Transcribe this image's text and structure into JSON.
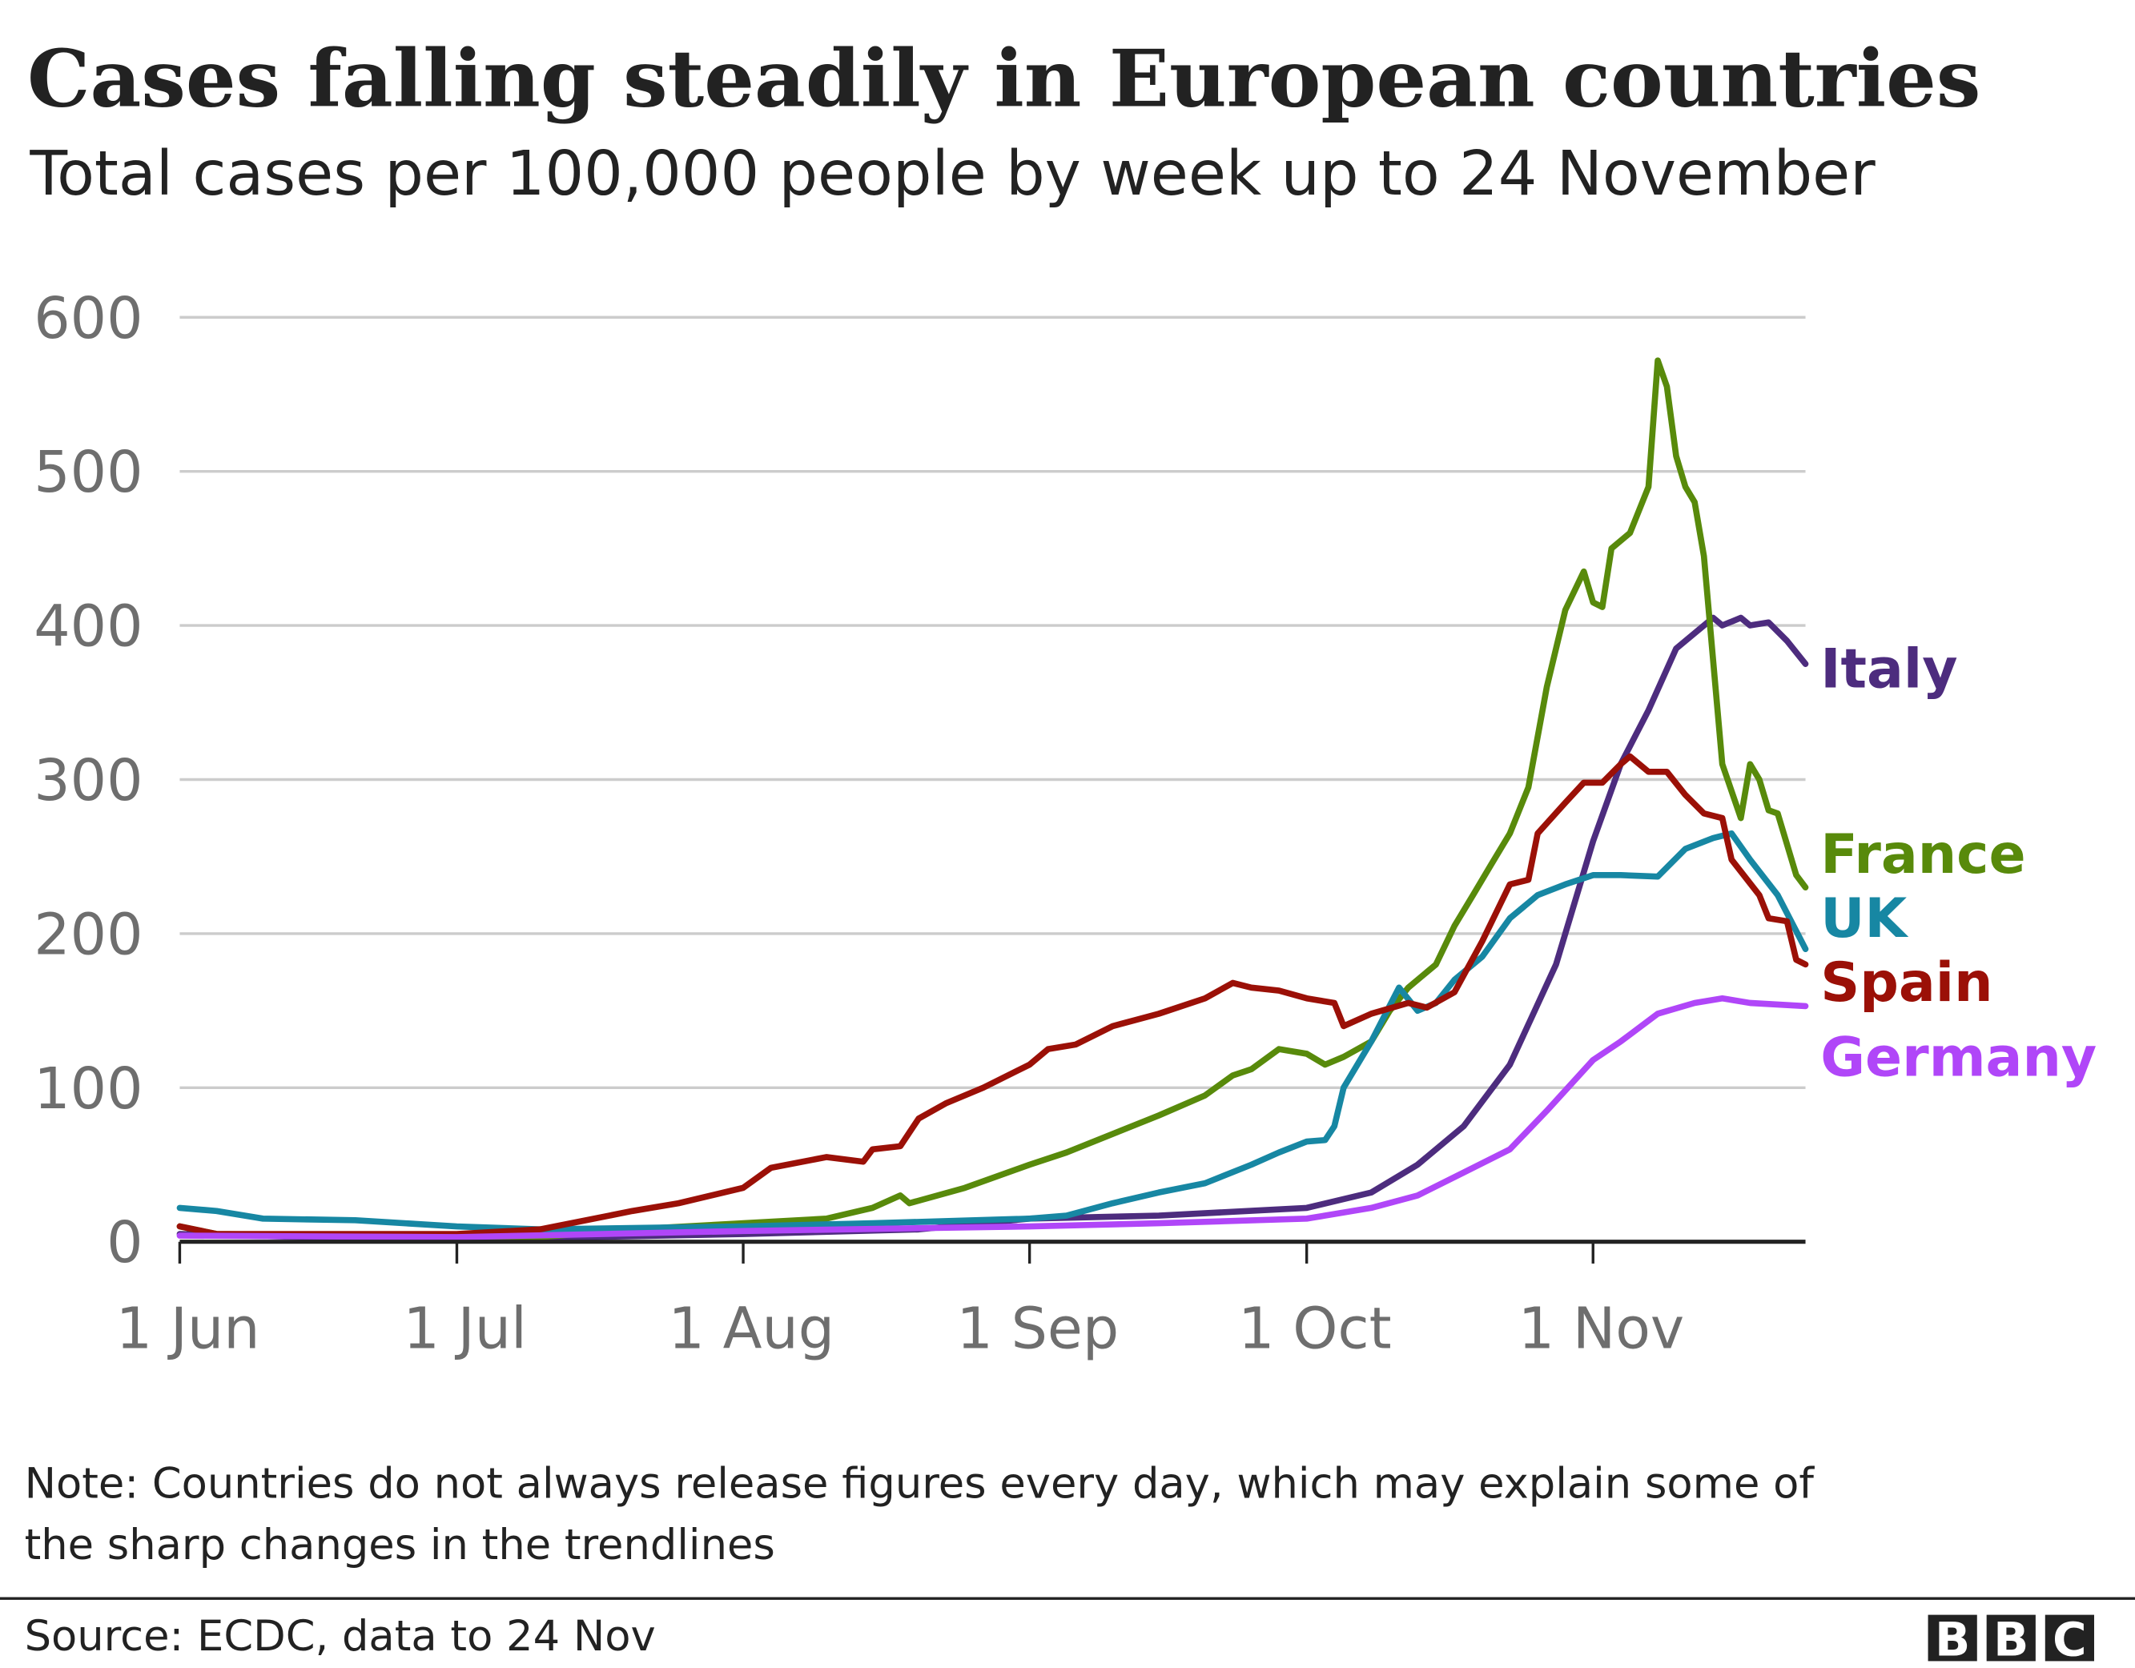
{
  "chart_data": {
    "type": "line",
    "title": "Cases falling steadily in European countries",
    "subtitle": "Total cases per 100,000 people by week up to 24 November",
    "xlabel": "",
    "ylabel": "",
    "x_range": [
      "2020-06-01",
      "2020-11-24"
    ],
    "ylim": [
      0,
      600
    ],
    "y_ticks": [
      "0",
      "100",
      "200",
      "300",
      "400",
      "500",
      "600"
    ],
    "x_ticks": [
      {
        "date": "2020-06-01",
        "label": "1 Jun"
      },
      {
        "date": "2020-07-01",
        "label": "1 Jul"
      },
      {
        "date": "2020-08-01",
        "label": "1 Aug"
      },
      {
        "date": "2020-09-01",
        "label": "1 Sep"
      },
      {
        "date": "2020-10-01",
        "label": "1 Oct"
      },
      {
        "date": "2020-11-01",
        "label": "1 Nov"
      }
    ],
    "grid": "horizontal",
    "legend": "direct labels at line ends (right)",
    "series": [
      {
        "name": "Italy",
        "color": "#4d2c7e",
        "points": [
          [
            "2020-06-01",
            5
          ],
          [
            "2020-06-15",
            3
          ],
          [
            "2020-07-15",
            3
          ],
          [
            "2020-08-01",
            5
          ],
          [
            "2020-08-20",
            8
          ],
          [
            "2020-09-01",
            15
          ],
          [
            "2020-09-15",
            17
          ],
          [
            "2020-10-01",
            22
          ],
          [
            "2020-10-08",
            32
          ],
          [
            "2020-10-13",
            50
          ],
          [
            "2020-10-18",
            75
          ],
          [
            "2020-10-23",
            115
          ],
          [
            "2020-10-28",
            180
          ],
          [
            "2020-11-01",
            260
          ],
          [
            "2020-11-04",
            310
          ],
          [
            "2020-11-07",
            345
          ],
          [
            "2020-11-10",
            385
          ],
          [
            "2020-11-12",
            395
          ],
          [
            "2020-11-14",
            405
          ],
          [
            "2020-11-15",
            400
          ],
          [
            "2020-11-17",
            405
          ],
          [
            "2020-11-18",
            400
          ],
          [
            "2020-11-20",
            402
          ],
          [
            "2020-11-22",
            390
          ],
          [
            "2020-11-24",
            375
          ]
        ]
      },
      {
        "name": "France",
        "color": "#588a0b",
        "points": [
          [
            "2020-06-01",
            10
          ],
          [
            "2020-06-05",
            5
          ],
          [
            "2020-07-10",
            3
          ],
          [
            "2020-07-20",
            8
          ],
          [
            "2020-08-01",
            12
          ],
          [
            "2020-08-10",
            15
          ],
          [
            "2020-08-15",
            22
          ],
          [
            "2020-08-18",
            30
          ],
          [
            "2020-08-19",
            25
          ],
          [
            "2020-08-25",
            35
          ],
          [
            "2020-09-01",
            50
          ],
          [
            "2020-09-05",
            58
          ],
          [
            "2020-09-10",
            70
          ],
          [
            "2020-09-15",
            82
          ],
          [
            "2020-09-20",
            95
          ],
          [
            "2020-09-23",
            108
          ],
          [
            "2020-09-25",
            112
          ],
          [
            "2020-09-28",
            125
          ],
          [
            "2020-10-01",
            122
          ],
          [
            "2020-10-03",
            115
          ],
          [
            "2020-10-05",
            120
          ],
          [
            "2020-10-08",
            130
          ],
          [
            "2020-10-10",
            150
          ],
          [
            "2020-10-12",
            165
          ],
          [
            "2020-10-15",
            180
          ],
          [
            "2020-10-17",
            205
          ],
          [
            "2020-10-19",
            225
          ],
          [
            "2020-10-21",
            245
          ],
          [
            "2020-10-23",
            265
          ],
          [
            "2020-10-25",
            295
          ],
          [
            "2020-10-27",
            360
          ],
          [
            "2020-10-29",
            410
          ],
          [
            "2020-10-31",
            435
          ],
          [
            "2020-11-01",
            415
          ],
          [
            "2020-11-02",
            412
          ],
          [
            "2020-11-03",
            450
          ],
          [
            "2020-11-05",
            460
          ],
          [
            "2020-11-07",
            490
          ],
          [
            "2020-11-08",
            572
          ],
          [
            "2020-11-09",
            555
          ],
          [
            "2020-11-10",
            510
          ],
          [
            "2020-11-11",
            490
          ],
          [
            "2020-11-12",
            480
          ],
          [
            "2020-11-13",
            445
          ],
          [
            "2020-11-15",
            310
          ],
          [
            "2020-11-17",
            275
          ],
          [
            "2020-11-18",
            310
          ],
          [
            "2020-11-19",
            300
          ],
          [
            "2020-11-20",
            280
          ],
          [
            "2020-11-21",
            278
          ],
          [
            "2020-11-23",
            238
          ],
          [
            "2020-11-24",
            230
          ]
        ]
      },
      {
        "name": "UK",
        "color": "#1787a3",
        "points": [
          [
            "2020-06-01",
            22
          ],
          [
            "2020-06-05",
            20
          ],
          [
            "2020-06-10",
            15
          ],
          [
            "2020-06-20",
            14
          ],
          [
            "2020-07-01",
            10
          ],
          [
            "2020-07-10",
            8
          ],
          [
            "2020-08-01",
            10
          ],
          [
            "2020-08-15",
            12
          ],
          [
            "2020-09-01",
            15
          ],
          [
            "2020-09-05",
            17
          ],
          [
            "2020-09-10",
            25
          ],
          [
            "2020-09-15",
            32
          ],
          [
            "2020-09-20",
            38
          ],
          [
            "2020-09-25",
            50
          ],
          [
            "2020-09-28",
            58
          ],
          [
            "2020-10-01",
            65
          ],
          [
            "2020-10-03",
            66
          ],
          [
            "2020-10-04",
            75
          ],
          [
            "2020-10-05",
            100
          ],
          [
            "2020-10-08",
            130
          ],
          [
            "2020-10-11",
            165
          ],
          [
            "2020-10-13",
            150
          ],
          [
            "2020-10-15",
            155
          ],
          [
            "2020-10-17",
            170
          ],
          [
            "2020-10-20",
            185
          ],
          [
            "2020-10-23",
            210
          ],
          [
            "2020-10-26",
            225
          ],
          [
            "2020-10-29",
            232
          ],
          [
            "2020-11-01",
            238
          ],
          [
            "2020-11-04",
            238
          ],
          [
            "2020-11-08",
            237
          ],
          [
            "2020-11-11",
            255
          ],
          [
            "2020-11-14",
            262
          ],
          [
            "2020-11-16",
            265
          ],
          [
            "2020-11-18",
            248
          ],
          [
            "2020-11-21",
            225
          ],
          [
            "2020-11-24",
            190
          ]
        ]
      },
      {
        "name": "Spain",
        "color": "#9b1007",
        "points": [
          [
            "2020-06-01",
            10
          ],
          [
            "2020-06-05",
            5
          ],
          [
            "2020-07-01",
            5
          ],
          [
            "2020-07-10",
            8
          ],
          [
            "2020-07-20",
            20
          ],
          [
            "2020-07-25",
            25
          ],
          [
            "2020-08-01",
            35
          ],
          [
            "2020-08-04",
            48
          ],
          [
            "2020-08-10",
            55
          ],
          [
            "2020-08-14",
            52
          ],
          [
            "2020-08-15",
            60
          ],
          [
            "2020-08-18",
            62
          ],
          [
            "2020-08-20",
            80
          ],
          [
            "2020-08-23",
            90
          ],
          [
            "2020-08-27",
            100
          ],
          [
            "2020-09-01",
            115
          ],
          [
            "2020-09-03",
            125
          ],
          [
            "2020-09-06",
            128
          ],
          [
            "2020-09-10",
            140
          ],
          [
            "2020-09-15",
            148
          ],
          [
            "2020-09-20",
            158
          ],
          [
            "2020-09-23",
            168
          ],
          [
            "2020-09-25",
            165
          ],
          [
            "2020-09-28",
            163
          ],
          [
            "2020-10-01",
            158
          ],
          [
            "2020-10-04",
            155
          ],
          [
            "2020-10-05",
            140
          ],
          [
            "2020-10-08",
            148
          ],
          [
            "2020-10-12",
            155
          ],
          [
            "2020-10-14",
            152
          ],
          [
            "2020-10-17",
            162
          ],
          [
            "2020-10-20",
            195
          ],
          [
            "2020-10-23",
            232
          ],
          [
            "2020-10-25",
            235
          ],
          [
            "2020-10-26",
            265
          ],
          [
            "2020-10-29",
            285
          ],
          [
            "2020-10-31",
            298
          ],
          [
            "2020-11-02",
            298
          ],
          [
            "2020-11-04",
            310
          ],
          [
            "2020-11-05",
            315
          ],
          [
            "2020-11-07",
            305
          ],
          [
            "2020-11-09",
            305
          ],
          [
            "2020-11-11",
            290
          ],
          [
            "2020-11-13",
            278
          ],
          [
            "2020-11-15",
            275
          ],
          [
            "2020-11-16",
            248
          ],
          [
            "2020-11-19",
            225
          ],
          [
            "2020-11-20",
            210
          ],
          [
            "2020-11-22",
            208
          ],
          [
            "2020-11-23",
            183
          ],
          [
            "2020-11-24",
            180
          ]
        ]
      },
      {
        "name": "Germany",
        "color": "#b046f8",
        "points": [
          [
            "2020-06-01",
            4
          ],
          [
            "2020-07-01",
            3
          ],
          [
            "2020-08-01",
            7
          ],
          [
            "2020-09-01",
            10
          ],
          [
            "2020-09-15",
            12
          ],
          [
            "2020-10-01",
            15
          ],
          [
            "2020-10-08",
            22
          ],
          [
            "2020-10-13",
            30
          ],
          [
            "2020-10-18",
            45
          ],
          [
            "2020-10-23",
            60
          ],
          [
            "2020-10-27",
            85
          ],
          [
            "2020-11-01",
            118
          ],
          [
            "2020-11-04",
            130
          ],
          [
            "2020-11-08",
            148
          ],
          [
            "2020-11-12",
            155
          ],
          [
            "2020-11-15",
            158
          ],
          [
            "2020-11-18",
            155
          ],
          [
            "2020-11-24",
            153
          ]
        ]
      }
    ]
  },
  "footer": {
    "note": [
      "Note: Countries do not always release figures every day, which may explain some of",
      "the sharp changes in the trendlines"
    ],
    "source": "Source: ECDC, data to 24 Nov",
    "logo": [
      "B",
      "B",
      "C"
    ]
  }
}
